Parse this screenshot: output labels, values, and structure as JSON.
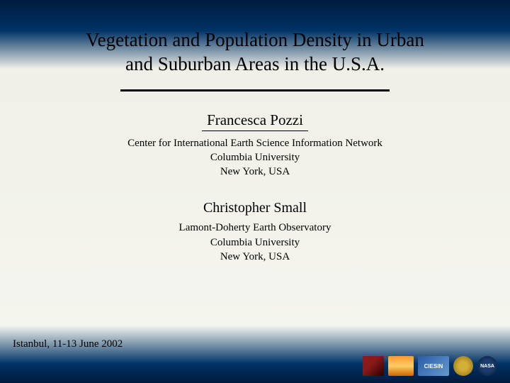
{
  "slide": {
    "title_line1": "Vegetation and Population Density in Urban",
    "title_line2": "and Suburban Areas in the U.S.A.",
    "author1": {
      "name": "Francesca Pozzi",
      "affil_line1": "Center for International Earth Science Information Network",
      "affil_line2": "Columbia University",
      "affil_line3": "New York, USA"
    },
    "author2": {
      "name": "Christopher Small",
      "affil_line1": "Lamont-Doherty Earth Observatory",
      "affil_line2": "Columbia University",
      "affil_line3": "New York, USA"
    },
    "footer": "Istanbul, 11-13 June 2002",
    "logos": {
      "l3_text": "CIESIN",
      "l5_text": "NASA"
    }
  },
  "style": {
    "bg_top": "#001a3d",
    "bg_mid": "#f5f5ef",
    "bg_bottom": "#001a3d",
    "text_color": "#000000",
    "title_fontsize": 27,
    "author_fontsize": 21,
    "affil_fontsize": 15,
    "footer_fontsize": 15,
    "hr_width": 380,
    "hr_thickness": 3,
    "author_underline_width": 150
  }
}
